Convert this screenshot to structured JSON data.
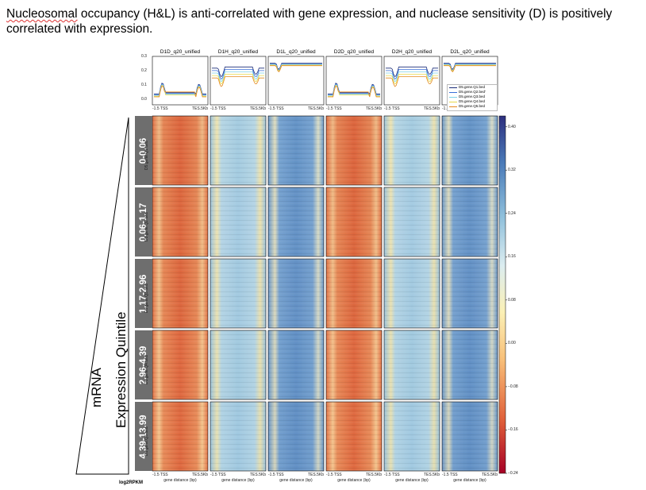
{
  "title": {
    "line1_prefix": "Nucleosomal",
    "line1_rest": " occupancy (H&L) is anti-correlated with gene expression, and nuclease sensitivity (D) is positively",
    "line2": "correlated with expression."
  },
  "columns": [
    {
      "name": "D1D_q20_unified",
      "kind": "D"
    },
    {
      "name": "D1H_q20_unified",
      "kind": "H"
    },
    {
      "name": "D1L_q20_unified",
      "kind": "L"
    },
    {
      "name": "D2D_q20_unified",
      "kind": "D"
    },
    {
      "name": "D2H_q20_unified",
      "kind": "H"
    },
    {
      "name": "D2L_q20_unified",
      "kind": "L"
    }
  ],
  "profile_yticks": [
    "0.3",
    "0.2",
    "0.1",
    "0.0"
  ],
  "xticks": {
    "left": "-1.5 TSS",
    "right": "TES.5Kb"
  },
  "xaxis_label": "gene distance (bp)",
  "quintiles": [
    {
      "range": "0-0.06",
      "bed": "D5.gene.Q1.bed"
    },
    {
      "range": "0.06-1.17",
      "bed": "D5.gene.Q2.bed"
    },
    {
      "range": "1.17-2.96",
      "bed": "D5.gene.Q3.bed"
    },
    {
      "range": "2.96-4.39",
      "bed": "D5.gene.Q4.bed"
    },
    {
      "range": "4.39-13.99",
      "bed": "D5.gene.Q5.bed"
    }
  ],
  "legend": [
    {
      "label": "D5.gene.Q1.bed",
      "color": "#1a2c7a"
    },
    {
      "label": "D5.gene.Q2.bed'",
      "color": "#3a6fd8"
    },
    {
      "label": "D5.gene.Q3.bed",
      "color": "#7fd4e8"
    },
    {
      "label": "D5.gene.Q4.bed",
      "color": "#e6d84a"
    },
    {
      "label": "D5.gene.Q5.bed",
      "color": "#e58a1f"
    }
  ],
  "colorbar": {
    "ticks": [
      "0.40",
      "0.32",
      "0.24",
      "0.16",
      "0.08",
      "0.00",
      "−0.08",
      "−0.16",
      "−0.24"
    ],
    "values": [
      0.4,
      0.32,
      0.24,
      0.16,
      0.08,
      0.0,
      -0.08,
      -0.16,
      -0.24
    ],
    "min": -0.24,
    "max": 0.42
  },
  "axis_label": {
    "line1": "mRNA",
    "line2": "Expression Quintile"
  },
  "unit_label": "log2RPKM",
  "colors": {
    "quintile_label_bg": "#6e6e6e"
  }
}
